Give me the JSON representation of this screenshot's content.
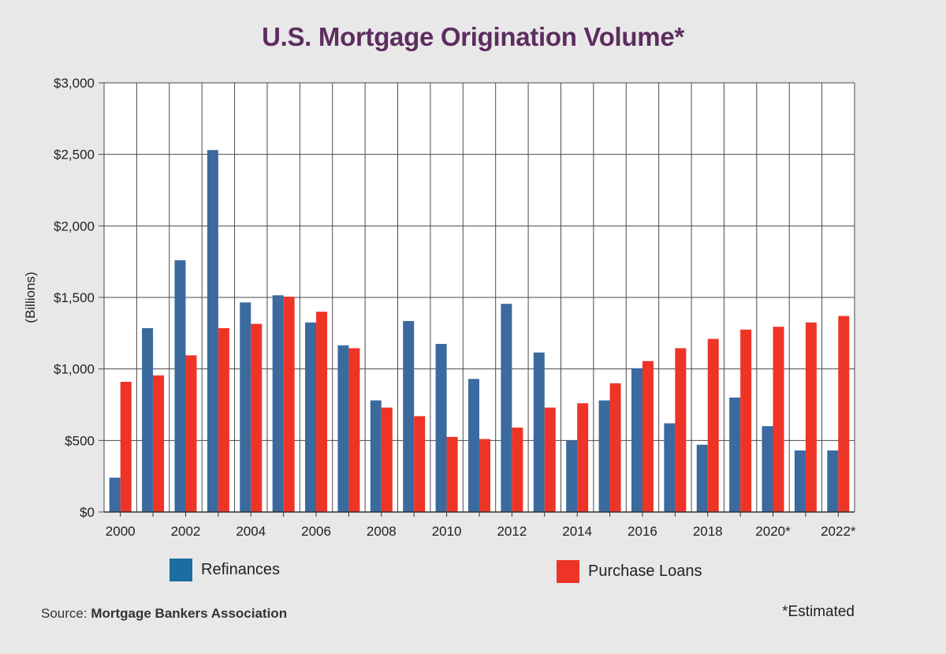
{
  "chart_data": {
    "type": "bar",
    "title": "U.S. Mortgage Origination Volume*",
    "ylabel": "(Billions)",
    "xlabel": "",
    "ylim": [
      0,
      3000
    ],
    "yticks": [
      0,
      500,
      1000,
      1500,
      2000,
      2500,
      3000
    ],
    "ytick_labels": [
      "$0",
      "$500",
      "$1,000",
      "$1,500",
      "$2,000",
      "$2,500",
      "$3,000"
    ],
    "categories": [
      "2000",
      "2001",
      "2002",
      "2003",
      "2004",
      "2005",
      "2006",
      "2007",
      "2008",
      "2009",
      "2010",
      "2011",
      "2012",
      "2013",
      "2014",
      "2015",
      "2016",
      "2017",
      "2018",
      "2019",
      "2020",
      "2021",
      "2022"
    ],
    "xtick_labels": [
      "2000",
      "",
      "2002",
      "",
      "2004",
      "",
      "2006",
      "",
      "2008",
      "",
      "2010",
      "",
      "2012",
      "",
      "2014",
      "",
      "2016",
      "",
      "2018",
      "",
      "2020*",
      "",
      "2022*"
    ],
    "grid": true,
    "legend_position": "bottom",
    "series": [
      {
        "name": "Refinances",
        "color": "#3a6a9e",
        "values": [
          240,
          1285,
          1760,
          2530,
          1465,
          1515,
          1325,
          1165,
          780,
          1335,
          1175,
          930,
          1455,
          1115,
          500,
          780,
          1005,
          620,
          470,
          800,
          600,
          430,
          430
        ]
      },
      {
        "name": "Purchase Loans",
        "color": "#ee3427",
        "values": [
          910,
          955,
          1095,
          1285,
          1315,
          1505,
          1400,
          1145,
          730,
          670,
          525,
          510,
          590,
          730,
          760,
          900,
          1055,
          1145,
          1210,
          1275,
          1295,
          1325,
          1370
        ]
      }
    ]
  },
  "legend": {
    "refinances_label": "Refinances",
    "refinances_color": "#1a6ea1",
    "purchase_label": "Purchase Loans",
    "purchase_color": "#ee3427"
  },
  "source": {
    "prefix": "Source: ",
    "name": "Mortgage Bankers Association"
  },
  "footnote": "*Estimated"
}
